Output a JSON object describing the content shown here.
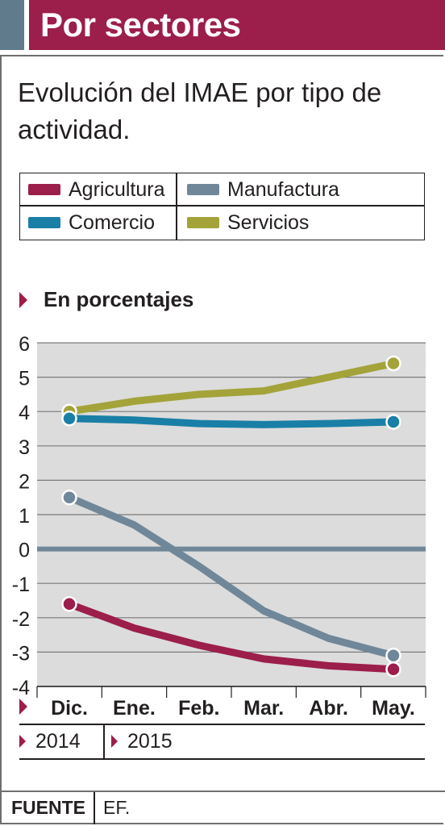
{
  "header": {
    "title": "Por sectores"
  },
  "subtitle": "Evolución del IMAE por tipo de actividad.",
  "legend": [
    {
      "label": "Agricultura",
      "color": "#9c1e4a"
    },
    {
      "label": "Manufactura",
      "color": "#6f8799"
    },
    {
      "label": "Comercio",
      "color": "#1a7fa6"
    },
    {
      "label": "Servicios",
      "color": "#a3a33a"
    }
  ],
  "unit_label": "En porcentajes",
  "years": [
    "2014",
    "2015"
  ],
  "source": {
    "label": "FUENTE",
    "value": "EF."
  },
  "chart_data": {
    "type": "line",
    "categories": [
      "Dic.",
      "Ene.",
      "Feb.",
      "Mar.",
      "Abr.",
      "May."
    ],
    "y_ticks": [
      "6",
      "5",
      "4",
      "3",
      "2",
      "1",
      "0",
      "-1",
      "-2",
      "-3",
      "-4"
    ],
    "ylim": [
      -4,
      6
    ],
    "grid": true,
    "series": [
      {
        "name": "Servicios",
        "color": "#a3a33a",
        "values": [
          4.0,
          4.3,
          4.5,
          4.6,
          5.0,
          5.4
        ]
      },
      {
        "name": "Comercio",
        "color": "#1a7fa6",
        "values": [
          3.8,
          3.75,
          3.65,
          3.62,
          3.65,
          3.7
        ]
      },
      {
        "name": "Manufactura",
        "color": "#6f8799",
        "values": [
          1.5,
          0.7,
          -0.5,
          -1.8,
          -2.6,
          -3.1
        ]
      },
      {
        "name": "Agricultura",
        "color": "#9c1e4a",
        "values": [
          -1.6,
          -2.3,
          -2.8,
          -3.2,
          -3.4,
          -3.5
        ]
      }
    ]
  }
}
